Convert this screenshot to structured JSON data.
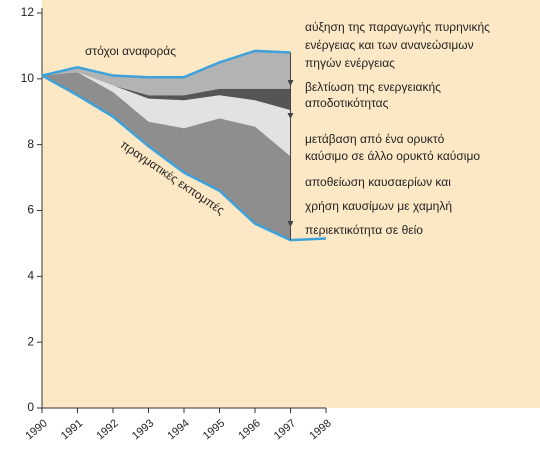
{
  "chart_data": {
    "type": "stacked-area",
    "x": [
      1990,
      1991,
      1992,
      1993,
      1994,
      1995,
      1996,
      1997,
      1998
    ],
    "xlim": [
      1990,
      1998
    ],
    "xticks": [
      1990,
      1991,
      1992,
      1993,
      1994,
      1995,
      1996,
      1997,
      1998
    ],
    "ylim": [
      0,
      12
    ],
    "yticks": [
      0,
      2,
      4,
      6,
      8,
      10,
      12
    ],
    "line_color": "#3ea2da",
    "background": "#fde8c6",
    "target_label": "στόχοι αναφοράς",
    "actual": {
      "name": "πραγματικές εκπομπές",
      "values": [
        10.1,
        9.5,
        8.85,
        7.95,
        7.15,
        6.6,
        5.6,
        5.1,
        5.15
      ]
    },
    "series": [
      {
        "name": [
          "αποθείωση καυσαερίων και",
          "χρήση καυσίμων με χαμηλή",
          "περιεκτικότητα σε θείο"
        ],
        "color": "#8e8e8e",
        "values": [
          0,
          0.7,
          0.75,
          0.75,
          1.35,
          2.2,
          2.95,
          2.55,
          null
        ]
      },
      {
        "name": [
          "μετάβαση από ένα ορυκτό",
          "καύσιμο σε άλλο ορυκτό καύσιμο"
        ],
        "color": "#e2e2e2",
        "values": [
          0,
          0,
          0.2,
          0.7,
          0.85,
          0.7,
          0.8,
          1.4,
          null
        ]
      },
      {
        "name": [
          "βελτίωση της ενεργειακής",
          "αποδοτικότητας"
        ],
        "color": "#555555",
        "values": [
          0,
          0,
          0,
          0.1,
          0.15,
          0.2,
          0.35,
          0.65,
          null
        ]
      },
      {
        "name": [
          "αύξηση της παραγωγής πυρηνικής",
          "ενέργειας και των ανανεώσιμων",
          "πηγών ενέργειας"
        ],
        "color": "#b3b3b3",
        "values": [
          0,
          0.15,
          0.3,
          0.55,
          0.55,
          0.8,
          1.15,
          1.1,
          null
        ]
      }
    ]
  }
}
